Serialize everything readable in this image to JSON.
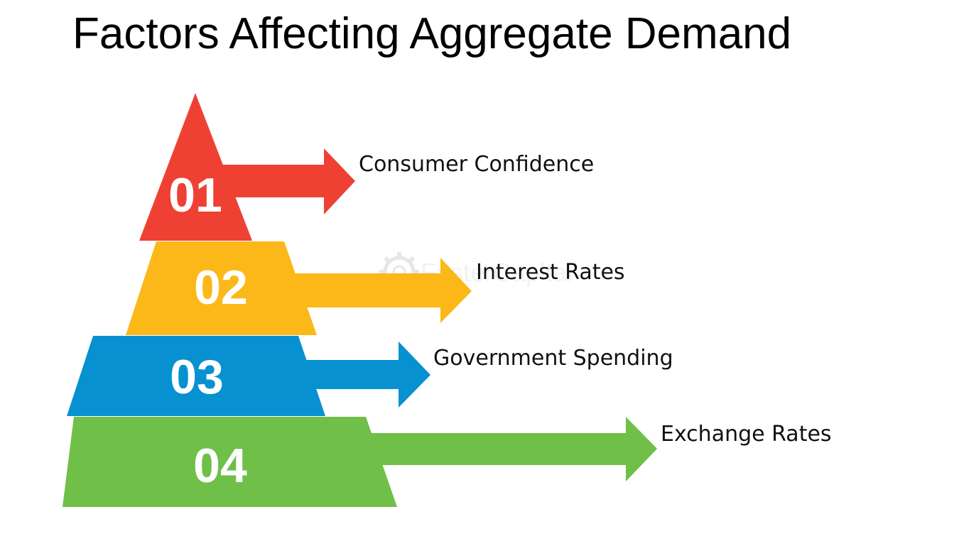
{
  "title": "Factors Affecting Aggregate Demand",
  "watermark": {
    "text": "FasterCapital",
    "icon": "gear-icon"
  },
  "tiers": [
    {
      "number": "01",
      "label": "Consumer Confidence",
      "color": "#ee4133"
    },
    {
      "number": "02",
      "label": "Interest Rates",
      "color": "#fbb818"
    },
    {
      "number": "03",
      "label": "Government Spending",
      "color": "#0791d1"
    },
    {
      "number": "04",
      "label": "Exchange Rates",
      "color": "#6fbf48"
    }
  ]
}
